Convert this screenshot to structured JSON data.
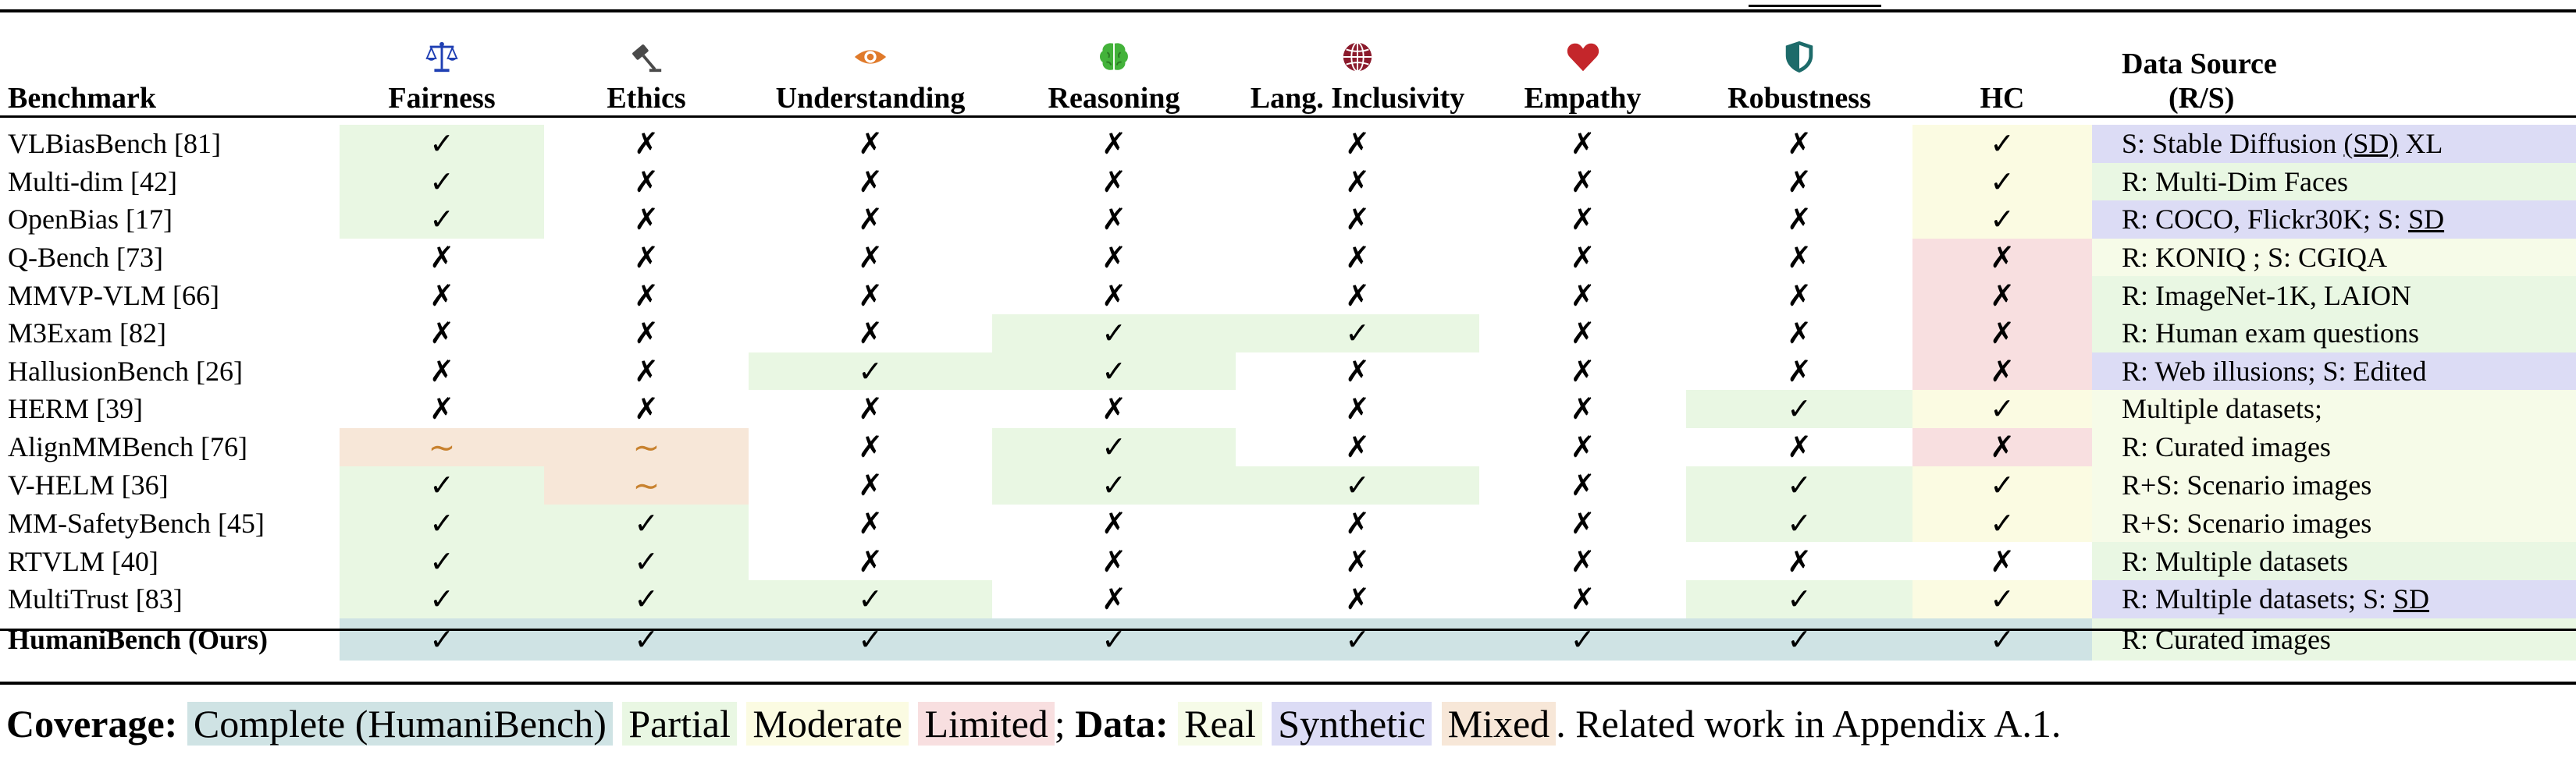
{
  "headers": {
    "benchmark": "Benchmark",
    "fairness": "Fairness",
    "ethics": "Ethics",
    "understanding": "Understanding",
    "reasoning": "Reasoning",
    "lang_inclusivity": "Lang. Inclusivity",
    "empathy": "Empathy",
    "robustness": "Robustness",
    "hc": "HC",
    "data_source_line1": "Data Source",
    "data_source_line2": "(R/S)"
  },
  "icons": {
    "fairness": {
      "name": "scales-icon",
      "color": "#1f3fb3"
    },
    "ethics": {
      "name": "gavel-icon",
      "color": "#4a4a4a"
    },
    "understanding": {
      "name": "eye-icon",
      "color": "#e07a2a"
    },
    "reasoning": {
      "name": "brain-icon",
      "color": "#43b23a"
    },
    "lang_inclusivity": {
      "name": "globe-icon",
      "color": "#8b1a2c"
    },
    "empathy": {
      "name": "heart-icon",
      "color": "#c4262b"
    },
    "robustness": {
      "name": "shield-icon",
      "color": "#1d6b6a"
    }
  },
  "symbols": {
    "check": "✓",
    "cross": "✗",
    "tilde": "∼"
  },
  "colors": {
    "complete": "#cfe3e4",
    "partial": "#e9f7e3",
    "moderate": "#fbfbe2",
    "limited": "#f8dfe0",
    "real": "#f6fbe8",
    "synthetic": "#dcdcf5",
    "mixed": "#f7e7d8"
  },
  "rows": [
    {
      "name": "VLBiasBench [81]",
      "cells": [
        [
          "check",
          "partial"
        ],
        [
          "cross",
          ""
        ],
        [
          "cross",
          ""
        ],
        [
          "cross",
          ""
        ],
        [
          "cross",
          ""
        ],
        [
          "cross",
          ""
        ],
        [
          "cross",
          ""
        ],
        [
          "check",
          "moderate"
        ]
      ],
      "source": {
        "bg": "synthetic",
        "parts": [
          {
            "t": "S: Stable Diffusion "
          },
          {
            "t": "(SD)",
            "u": true
          },
          {
            "t": " XL"
          }
        ]
      }
    },
    {
      "name": "Multi-dim [42]",
      "cells": [
        [
          "check",
          "partial"
        ],
        [
          "cross",
          ""
        ],
        [
          "cross",
          ""
        ],
        [
          "cross",
          ""
        ],
        [
          "cross",
          ""
        ],
        [
          "cross",
          ""
        ],
        [
          "cross",
          ""
        ],
        [
          "check",
          "moderate"
        ]
      ],
      "source": {
        "bg": "partial",
        "parts": [
          {
            "t": "R: Multi-Dim Faces"
          }
        ]
      }
    },
    {
      "name": "OpenBias [17]",
      "cells": [
        [
          "check",
          "partial"
        ],
        [
          "cross",
          ""
        ],
        [
          "cross",
          ""
        ],
        [
          "cross",
          ""
        ],
        [
          "cross",
          ""
        ],
        [
          "cross",
          ""
        ],
        [
          "cross",
          ""
        ],
        [
          "check",
          "moderate"
        ]
      ],
      "source": {
        "bg": "synthetic",
        "parts": [
          {
            "t": "R: COCO, Flickr30K; S: "
          },
          {
            "t": "SD",
            "u": true
          }
        ]
      }
    },
    {
      "name": "Q-Bench [73]",
      "cells": [
        [
          "cross",
          ""
        ],
        [
          "cross",
          ""
        ],
        [
          "cross",
          ""
        ],
        [
          "cross",
          ""
        ],
        [
          "cross",
          ""
        ],
        [
          "cross",
          ""
        ],
        [
          "cross",
          ""
        ],
        [
          "cross",
          "limited"
        ]
      ],
      "source": {
        "bg": "real",
        "parts": [
          {
            "t": "R: KONIQ ; S: CGIQA"
          }
        ]
      }
    },
    {
      "name": "MMVP-VLM [66]",
      "cells": [
        [
          "cross",
          ""
        ],
        [
          "cross",
          ""
        ],
        [
          "cross",
          ""
        ],
        [
          "cross",
          ""
        ],
        [
          "cross",
          ""
        ],
        [
          "cross",
          ""
        ],
        [
          "cross",
          ""
        ],
        [
          "cross",
          "limited"
        ]
      ],
      "source": {
        "bg": "partial",
        "parts": [
          {
            "t": "R: ImageNet-1K, LAION"
          }
        ]
      }
    },
    {
      "name": "M3Exam [82]",
      "cells": [
        [
          "cross",
          ""
        ],
        [
          "cross",
          ""
        ],
        [
          "cross",
          ""
        ],
        [
          "check",
          "partial"
        ],
        [
          "check",
          "partial"
        ],
        [
          "cross",
          ""
        ],
        [
          "cross",
          ""
        ],
        [
          "cross",
          "limited"
        ]
      ],
      "source": {
        "bg": "partial",
        "parts": [
          {
            "t": "R: Human exam questions"
          }
        ]
      }
    },
    {
      "name": "HallusionBench [26]",
      "cells": [
        [
          "cross",
          ""
        ],
        [
          "cross",
          ""
        ],
        [
          "check",
          "partial"
        ],
        [
          "check",
          "partial"
        ],
        [
          "cross",
          ""
        ],
        [
          "cross",
          ""
        ],
        [
          "cross",
          ""
        ],
        [
          "cross",
          "limited"
        ]
      ],
      "source": {
        "bg": "synthetic",
        "parts": [
          {
            "t": "R: Web illusions; S: Edited"
          }
        ]
      }
    },
    {
      "name": "HERM [39]",
      "cells": [
        [
          "cross",
          ""
        ],
        [
          "cross",
          ""
        ],
        [
          "cross",
          ""
        ],
        [
          "cross",
          ""
        ],
        [
          "cross",
          ""
        ],
        [
          "cross",
          ""
        ],
        [
          "check",
          "partial"
        ],
        [
          "check",
          "moderate"
        ]
      ],
      "source": {
        "bg": "real",
        "parts": [
          {
            "t": "Multiple datasets;"
          }
        ]
      }
    },
    {
      "name": "AlignMMBench [76]",
      "cells": [
        [
          "tilde",
          "mixed"
        ],
        [
          "tilde",
          "mixed"
        ],
        [
          "cross",
          ""
        ],
        [
          "check",
          "partial"
        ],
        [
          "cross",
          ""
        ],
        [
          "cross",
          ""
        ],
        [
          "cross",
          ""
        ],
        [
          "cross",
          "limited"
        ]
      ],
      "source": {
        "bg": "real",
        "parts": [
          {
            "t": "R: Curated images"
          }
        ]
      }
    },
    {
      "name": "V-HELM [36]",
      "cells": [
        [
          "check",
          "partial"
        ],
        [
          "tilde",
          "mixed"
        ],
        [
          "cross",
          ""
        ],
        [
          "check",
          "partial"
        ],
        [
          "check",
          "partial"
        ],
        [
          "cross",
          ""
        ],
        [
          "check",
          "partial"
        ],
        [
          "check",
          "moderate"
        ]
      ],
      "source": {
        "bg": "real",
        "parts": [
          {
            "t": "R+S: Scenario images"
          }
        ]
      }
    },
    {
      "name": "MM-SafetyBench [45]",
      "cells": [
        [
          "check",
          "partial"
        ],
        [
          "check",
          "partial"
        ],
        [
          "cross",
          ""
        ],
        [
          "cross",
          ""
        ],
        [
          "cross",
          ""
        ],
        [
          "cross",
          ""
        ],
        [
          "check",
          "partial"
        ],
        [
          "check",
          "moderate"
        ]
      ],
      "source": {
        "bg": "real",
        "parts": [
          {
            "t": "R+S: Scenario images"
          }
        ]
      }
    },
    {
      "name": "RTVLM  [40]",
      "cells": [
        [
          "check",
          "partial"
        ],
        [
          "check",
          "partial"
        ],
        [
          "cross",
          ""
        ],
        [
          "cross",
          ""
        ],
        [
          "cross",
          ""
        ],
        [
          "cross",
          ""
        ],
        [
          "cross",
          ""
        ],
        [
          "cross",
          ""
        ]
      ],
      "source": {
        "bg": "partial",
        "parts": [
          {
            "t": "R: Multiple datasets"
          }
        ]
      }
    },
    {
      "name": "MultiTrust [83]",
      "cells": [
        [
          "check",
          "partial"
        ],
        [
          "check",
          "partial"
        ],
        [
          "check",
          "partial"
        ],
        [
          "cross",
          ""
        ],
        [
          "cross",
          ""
        ],
        [
          "cross",
          ""
        ],
        [
          "check",
          "partial"
        ],
        [
          "check",
          "moderate"
        ]
      ],
      "source": {
        "bg": "synthetic",
        "parts": [
          {
            "t": "R: Multiple datasets; S: "
          },
          {
            "t": "SD",
            "u": true
          }
        ]
      }
    }
  ],
  "ours": {
    "name": "HumaniBench (Ours)",
    "cells": [
      [
        "check",
        "complete"
      ],
      [
        "check",
        "complete"
      ],
      [
        "check",
        "complete"
      ],
      [
        "check",
        "complete"
      ],
      [
        "check",
        "complete"
      ],
      [
        "check",
        "complete"
      ],
      [
        "check",
        "complete"
      ],
      [
        "check",
        "complete"
      ]
    ],
    "source": {
      "bg": "partial",
      "parts": [
        {
          "t": "R: Curated images"
        }
      ]
    }
  },
  "legend": {
    "coverage_label": "Coverage:",
    "complete": "Complete (HumaniBench)",
    "partial": "Partial",
    "moderate": "Moderate",
    "limited": "Limited",
    "sep": ";",
    "data_label": "Data:",
    "real": "Real",
    "synthetic": "Synthetic",
    "mixed": "Mixed",
    "trailing": ". Related work in Appendix A.1."
  }
}
